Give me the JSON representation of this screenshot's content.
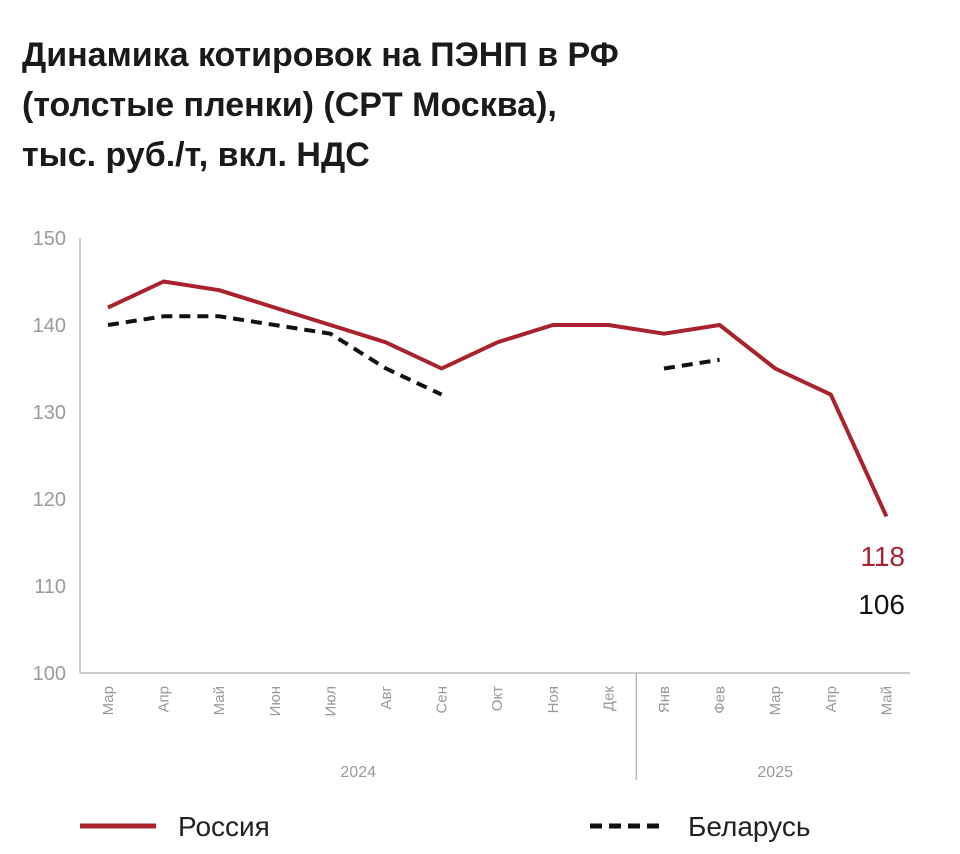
{
  "title_lines": [
    "Динамика котировок на ПЭНП в РФ",
    "(толстые пленки) (CPT Москва),",
    "тыс. руб./т, вкл. НДС"
  ],
  "colors": {
    "russia": "#a8232e",
    "belarus": "#111111",
    "axis": "#9a9a9a"
  },
  "chart_data": {
    "type": "line",
    "title": "Динамика котировок на ПЭНП в РФ (толстые пленки) (CPT Москва), тыс. руб./т, вкл. НДС",
    "categories": [
      "Мар",
      "Апр",
      "Май",
      "Июн",
      "Июл",
      "Авг",
      "Сен",
      "Окт",
      "Ноя",
      "Дек",
      "Янв",
      "Фев",
      "Мар",
      "Апр",
      "Май"
    ],
    "year_groups": [
      {
        "label": "2024",
        "count": 10
      },
      {
        "label": "2025",
        "count": 5
      }
    ],
    "ylim": [
      100,
      150
    ],
    "yticks": [
      100,
      110,
      120,
      130,
      140,
      150
    ],
    "grid": false,
    "series": [
      {
        "name": "Россия",
        "style": "solid",
        "values": [
          142,
          145,
          144,
          142,
          140,
          138,
          135,
          138,
          140,
          140,
          139,
          140,
          135,
          132,
          118
        ]
      },
      {
        "name": "Беларусь",
        "style": "dashed",
        "values": [
          140,
          141,
          141,
          140,
          139,
          135,
          132,
          null,
          null,
          null,
          135,
          136,
          null,
          null,
          null
        ]
      }
    ],
    "end_labels": [
      {
        "series": "Россия",
        "text": "118"
      },
      {
        "series": "Беларусь",
        "text": "106"
      }
    ],
    "legend_position": "bottom"
  }
}
